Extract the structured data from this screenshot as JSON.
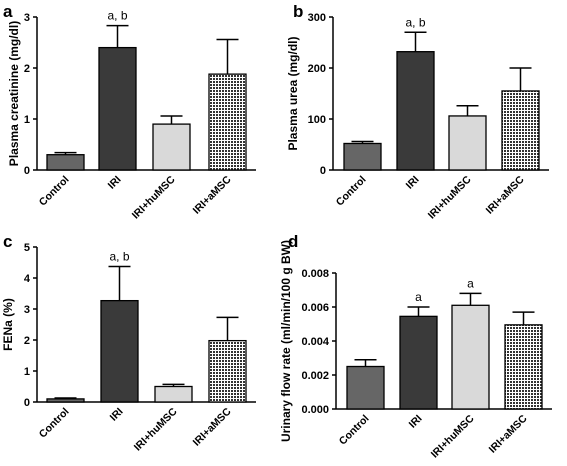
{
  "chart_data": [
    {
      "type": "bar",
      "panel": "a",
      "categories": [
        "Control",
        "IRI",
        "IRI+huMSC",
        "IRI+aMSC"
      ],
      "values": [
        0.3,
        2.4,
        0.9,
        1.88
      ],
      "errors": [
        0.04,
        0.43,
        0.16,
        0.68
      ],
      "annotations": [
        "",
        "a, b",
        "",
        ""
      ],
      "ylabel": "Plasma creatinine (mg/dl)",
      "ylim": [
        0,
        3
      ],
      "yticks": [
        0,
        1,
        2,
        3
      ]
    },
    {
      "type": "bar",
      "panel": "b",
      "categories": [
        "Control",
        "IRI",
        "IRI+huMSC",
        "IRI+aMSC"
      ],
      "values": [
        52,
        232,
        106,
        155
      ],
      "errors": [
        4,
        38,
        20,
        45
      ],
      "annotations": [
        "",
        "a, b",
        "",
        ""
      ],
      "ylabel": "Plasma urea  (mg/dl)",
      "ylim": [
        0,
        300
      ],
      "yticks": [
        0,
        100,
        200,
        300
      ]
    },
    {
      "type": "bar",
      "panel": "c",
      "categories": [
        "Control",
        "IRI",
        "IRI+huMSC",
        "IRI+aMSC"
      ],
      "values": [
        0.1,
        3.27,
        0.5,
        1.98
      ],
      "errors": [
        0.03,
        1.1,
        0.07,
        0.75
      ],
      "annotations": [
        "",
        "a, b",
        "",
        ""
      ],
      "ylabel": "FENa (%)",
      "ylim": [
        0,
        5
      ],
      "yticks": [
        0,
        1,
        2,
        3,
        4,
        5
      ]
    },
    {
      "type": "bar",
      "panel": "d",
      "categories": [
        "Control",
        "IRI",
        "IRI+huMSC",
        "IRI+aMSC"
      ],
      "values": [
        0.0025,
        0.00545,
        0.0061,
        0.00495
      ],
      "errors": [
        0.0004,
        0.00055,
        0.0007,
        0.00075
      ],
      "annotations": [
        "",
        "a",
        "a",
        ""
      ],
      "ylabel": "Urinary flow rate  (ml/min/100 g BW)",
      "ylim": [
        0,
        0.008
      ],
      "yticks": [
        "0.000",
        "0.002",
        "0.004",
        "0.006",
        "0.008"
      ]
    }
  ],
  "colors": {
    "control": "#666666",
    "iri": "#3a3a3a",
    "huMSC": "#d9d9d9",
    "aMSC_pattern": "crosshatch-dark"
  }
}
